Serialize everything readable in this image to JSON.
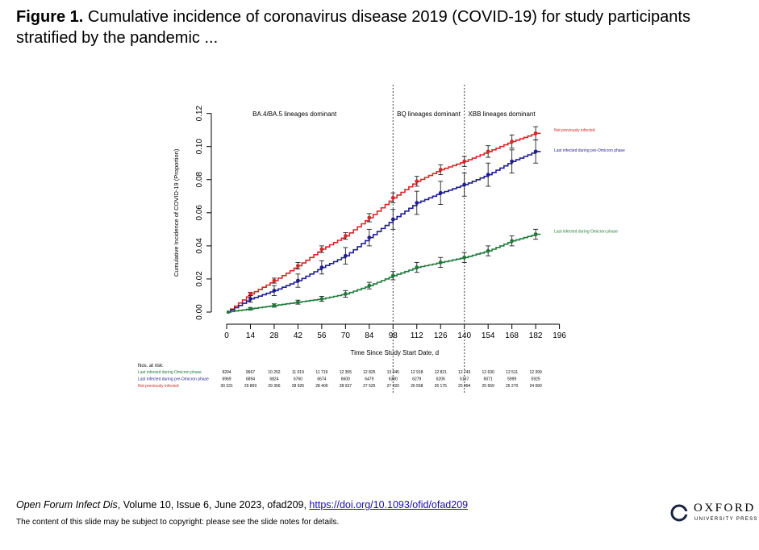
{
  "slide": {
    "title_prefix": "Figure 1.",
    "title_rest": " Cumulative incidence of coronavirus disease 2019 (COVID-19) for study participants stratified by the pandemic  ..."
  },
  "citation": {
    "journal": "Open Forum Infect Dis",
    "details": ", Volume 10, Issue 6, June  2023, ofad209, ",
    "doi": "https://doi.org/10.1093/ofid/ofad209"
  },
  "copyright": "The content of this slide may be subject to copyright: please see the slide notes for details.",
  "logo": {
    "word": "OXFORD",
    "sub": "UNIVERSITY PRESS"
  },
  "chart_data": {
    "type": "line",
    "xlabel": "Time Since Study Start Date, d",
    "ylabel": "Cumulative Incidence of COVID-19 (Proportion)",
    "xlim": [
      0,
      196
    ],
    "ylim": [
      0,
      0.12
    ],
    "xticks": [
      0,
      14,
      28,
      42,
      56,
      70,
      84,
      98,
      112,
      126,
      140,
      154,
      168,
      182,
      196
    ],
    "yticks": [
      "0.00",
      "0.02",
      "0.04",
      "0.06",
      "0.08",
      "0.10",
      "0.12"
    ],
    "vlines": [
      98,
      140
    ],
    "period_labels": [
      {
        "text": "BA.4/BA.5 lineages dominant",
        "x": 40
      },
      {
        "text": "BQ lineages dominant",
        "x": 119
      },
      {
        "text": "XBB lineages dominant",
        "x": 162
      }
    ],
    "series": [
      {
        "name": "Not previously infected",
        "color": "#d62728",
        "x": [
          0,
          14,
          28,
          42,
          56,
          70,
          84,
          98,
          112,
          126,
          140,
          154,
          168,
          182
        ],
        "y": [
          0.0,
          0.011,
          0.019,
          0.028,
          0.038,
          0.046,
          0.057,
          0.069,
          0.079,
          0.086,
          0.091,
          0.097,
          0.103,
          0.108
        ],
        "err": [
          0.0,
          0.001,
          0.0015,
          0.002,
          0.002,
          0.002,
          0.0025,
          0.003,
          0.003,
          0.003,
          0.003,
          0.0035,
          0.004,
          0.004
        ],
        "label_y": 0.11
      },
      {
        "name": "Last infected during pre-Omicron phase",
        "color": "#1f1f8f",
        "x": [
          0,
          14,
          28,
          42,
          56,
          70,
          84,
          98,
          112,
          126,
          140,
          154,
          168,
          182
        ],
        "y": [
          0.0,
          0.008,
          0.013,
          0.019,
          0.027,
          0.034,
          0.045,
          0.056,
          0.066,
          0.072,
          0.077,
          0.083,
          0.091,
          0.097
        ],
        "err": [
          0.0,
          0.002,
          0.003,
          0.004,
          0.004,
          0.005,
          0.005,
          0.006,
          0.007,
          0.007,
          0.007,
          0.007,
          0.007,
          0.007
        ],
        "label_y": 0.098
      },
      {
        "name": "Last infected during Omicron phase",
        "color": "#1e7a3a",
        "x": [
          0,
          14,
          28,
          42,
          56,
          70,
          84,
          98,
          112,
          126,
          140,
          154,
          168,
          182
        ],
        "y": [
          0.0,
          0.002,
          0.004,
          0.006,
          0.008,
          0.011,
          0.016,
          0.022,
          0.027,
          0.03,
          0.033,
          0.037,
          0.043,
          0.047
        ],
        "err": [
          0.0,
          0.0008,
          0.001,
          0.0012,
          0.0015,
          0.002,
          0.002,
          0.0025,
          0.003,
          0.003,
          0.003,
          0.003,
          0.003,
          0.003
        ],
        "label_y": 0.049
      }
    ],
    "risk_table": {
      "header": "Nos. at risk:",
      "rows": [
        {
          "label": "Last infected during Omicron phase",
          "color": "#1e7a3a",
          "values": [
            "9204",
            "9667",
            "10 252",
            "11 019",
            "11 719",
            "12 355",
            "12 825",
            "13 045",
            "12 918",
            "12 821",
            "12 743",
            "12 630",
            "12 511",
            "12 399"
          ]
        },
        {
          "label": "Last infected during pre-Omicron phase",
          "color": "#1f1f8f",
          "values": [
            "6969",
            "6894",
            "6824",
            "6760",
            "6674",
            "6600",
            "6479",
            "6380",
            "6279",
            "6206",
            "6137",
            "6071",
            "5999",
            "5925"
          ]
        },
        {
          "label": "Not previously infected",
          "color": "#d62728",
          "values": [
            "30 331",
            "29 809",
            "29 356",
            "28 926",
            "28 400",
            "28 037",
            "27 525",
            "27 020",
            "26 558",
            "26 175",
            "25 894",
            "25 569",
            "25 270",
            "24 990"
          ]
        }
      ]
    }
  }
}
